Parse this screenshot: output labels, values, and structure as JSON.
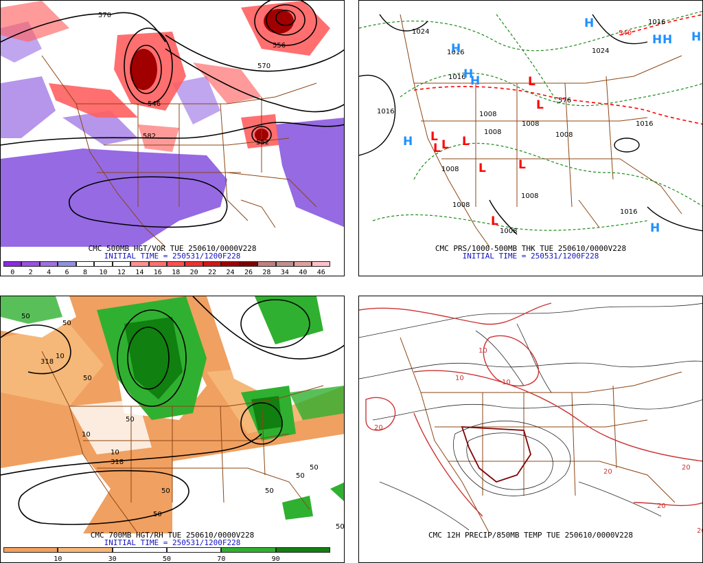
{
  "panels": {
    "p1": {
      "title": "CMC 500MB HGT/VOR TUE 250610/0000V228",
      "init": "INITIAL TIME = 250531/1200F228",
      "colorbar": {
        "colors": [
          "#8a2be2",
          "#9a50e0",
          "#a070e0",
          "#9090e0",
          "#ffffff",
          "#ffffff",
          "#ffffff",
          "#ff9090",
          "#ff7070",
          "#ff5050",
          "#f03030",
          "#d01818",
          "#a00000",
          "#800000",
          "#c08080",
          "#c09090",
          "#e0a0a0",
          "#ffc0c8"
        ],
        "labels": [
          "0",
          "2",
          "4",
          "6",
          "8",
          "10",
          "12",
          "14",
          "16",
          "18",
          "20",
          "22",
          "24",
          "26",
          "28",
          "34",
          "40",
          "46"
        ]
      },
      "contour_labels": [
        "570",
        "556",
        "570",
        "546",
        "582",
        "552"
      ]
    },
    "p2": {
      "title": "CMC PRS/1000-500MB THK TUE 250610/0000V228",
      "init": "INITIAL TIME = 250531/1200F228",
      "pressure_labels": [
        "1024",
        "1016",
        "1016",
        "1008",
        "1024",
        "1016",
        "1008",
        "1008",
        "1008",
        "1008",
        "1008",
        "1016",
        "1016",
        "1008",
        "1008",
        "540",
        "576",
        "1016"
      ],
      "highs": [
        "H",
        "H",
        "H",
        "H",
        "H",
        "H",
        "H",
        "H",
        "H"
      ],
      "lows": [
        "L",
        "L",
        "L",
        "L",
        "L",
        "L",
        "L",
        "L",
        "L"
      ]
    },
    "p3": {
      "title": "CMC 700MB HGT/RH TUE 250610/0000V228",
      "init": "INITIAL TIME = 250531/1200F228",
      "colorbar": {
        "colors": [
          "#f0a060",
          "#f5b878",
          "#ffffff",
          "#ffffff",
          "#30b030",
          "#108010"
        ],
        "labels": [
          "10",
          "30",
          "50",
          "70",
          "90"
        ]
      },
      "contour_labels": [
        "50",
        "50",
        "50",
        "10",
        "318",
        "10",
        "50",
        "50",
        "50",
        "10",
        "318",
        "50",
        "50",
        "50",
        "50"
      ]
    },
    "p4": {
      "title": "CMC 12H PRECIP/850MB TEMP TUE 250610/0000V228",
      "contour_labels": [
        "20",
        "10",
        "20",
        "20",
        "20",
        "20",
        "10",
        "10"
      ]
    }
  },
  "colors": {
    "vort_neg": "#8a5ae0",
    "vort_pos": "#ff6060",
    "vort_core": "#a00000",
    "map_lines": "#8b4513",
    "rh_dry": "#f0a060",
    "rh_moist": "#30b030",
    "high_color": "#1e90ff",
    "low_color": "#ff0000",
    "thickness_color": "#ff0000",
    "temp_warm": "#cc3333",
    "temp_hot": "#800000"
  }
}
